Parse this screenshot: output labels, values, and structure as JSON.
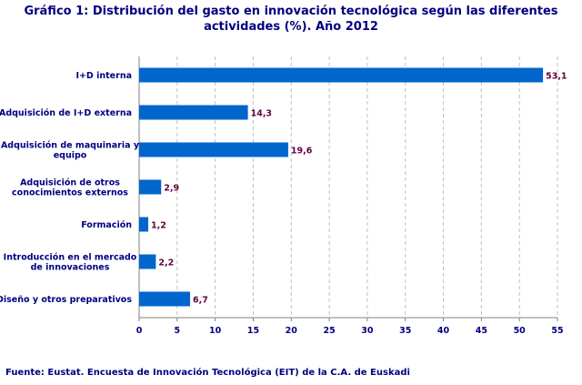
{
  "chart_data": {
    "type": "bar",
    "orientation": "horizontal",
    "title": "Gráfico 1: Distribución del gasto en innovación tecnológica según las diferentes actividades (%). Año 2012",
    "categories": [
      "I+D interna",
      "Adquisición de I+D externa",
      "Adquisición de maquinaria y equipo",
      "Adquisición de otros conocimientos externos",
      "Formación",
      "Introducción en el mercado de innovaciones",
      "Diseño y otros preparativos"
    ],
    "category_lines": [
      [
        "I+D interna"
      ],
      [
        "Adquisición de I+D externa"
      ],
      [
        "Adquisición de maquinaria y",
        "equipo"
      ],
      [
        "Adquisición de otros",
        "conocimientos externos"
      ],
      [
        "Formación"
      ],
      [
        "Introducción en el mercado",
        "de innovaciones"
      ],
      [
        "Diseño y otros preparativos"
      ]
    ],
    "values": [
      53.1,
      14.3,
      19.6,
      2.9,
      1.2,
      2.2,
      6.7
    ],
    "value_labels": [
      "53,1",
      "14,3",
      "19,6",
      "2,9",
      "1,2",
      "2,2",
      "6,7"
    ],
    "xlim": [
      0,
      55
    ],
    "xticks": [
      0,
      5,
      10,
      15,
      20,
      25,
      30,
      35,
      40,
      45,
      50,
      55
    ],
    "grid": "vertical dashed",
    "bar_color": "#0066CC",
    "xlabel": "",
    "ylabel": ""
  },
  "source": "Fuente: Eustat. Encuesta de Innovación Tecnológica (EIT) de la C.A. de Euskadi"
}
